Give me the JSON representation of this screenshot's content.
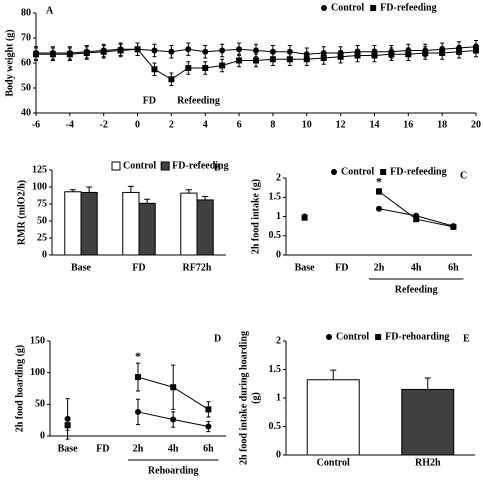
{
  "chart_data": [
    {
      "type": "line",
      "panel_label": "A",
      "ylabel": "Body weight (g)",
      "legend": "top-right",
      "x": [
        -6,
        -5,
        -4,
        -3,
        -2,
        -1,
        0,
        1,
        2,
        3,
        4,
        5,
        6,
        7,
        8,
        9,
        10,
        11,
        12,
        13,
        14,
        15,
        16,
        17,
        18,
        19,
        20
      ],
      "xlim": [
        -6,
        20
      ],
      "xticks": [
        -6,
        -4,
        -2,
        0,
        2,
        4,
        6,
        8,
        10,
        12,
        14,
        16,
        18,
        20
      ],
      "ylim": [
        40,
        80
      ],
      "yticks": [
        40,
        50,
        60,
        70,
        80
      ],
      "annotations": [
        "FD",
        "Refeeding"
      ],
      "series": [
        {
          "name": "Control",
          "marker": "circle",
          "color": "#000000",
          "values": [
            64,
            64,
            64,
            64.5,
            65,
            65.5,
            65.5,
            65,
            64.5,
            65.5,
            64.5,
            65,
            65.5,
            65,
            64.5,
            64.5,
            63.5,
            64,
            64,
            64.5,
            64.5,
            64.5,
            65,
            65,
            65.5,
            66,
            66.5
          ],
          "errors": [
            2.5,
            2.5,
            2.5,
            2.5,
            2.5,
            2.5,
            2.5,
            2.5,
            2.5,
            2.5,
            2.5,
            2.5,
            2.5,
            2.5,
            2.5,
            2.5,
            2.5,
            2.5,
            2.5,
            2.5,
            2.5,
            2.5,
            2.5,
            2.5,
            2.5,
            2.5,
            2.5
          ]
        },
        {
          "name": "FD-refeeding",
          "marker": "square",
          "color": "#000000",
          "values": [
            63.5,
            63.5,
            63.5,
            64,
            64.5,
            65,
            65.5,
            57.5,
            53.5,
            58,
            58,
            59,
            61,
            61,
            61.5,
            61.5,
            61.5,
            62,
            62.5,
            63,
            63,
            63.5,
            63.5,
            64,
            64,
            64.5,
            65
          ],
          "errors": [
            2.5,
            2.5,
            2.5,
            2.5,
            2.5,
            2.5,
            2.5,
            2.5,
            2.5,
            2.5,
            2.5,
            2.5,
            2.5,
            2.5,
            2.5,
            2.5,
            2.5,
            2.5,
            2.5,
            2.5,
            2.5,
            2.5,
            2.5,
            2.5,
            2.5,
            2.5,
            2.5
          ]
        }
      ]
    },
    {
      "type": "bar",
      "panel_label": "B",
      "ylabel": "RMR (mlO2/h)",
      "legend": "top",
      "categories": [
        "Base",
        "FD",
        "RF72h"
      ],
      "ylim": [
        0,
        125
      ],
      "yticks": [
        0,
        25,
        50,
        75,
        100,
        125
      ],
      "series": [
        {
          "name": "Control",
          "color": "#ffffff",
          "values": [
            93,
            92,
            91
          ],
          "errors": [
            3,
            9,
            5
          ]
        },
        {
          "name": "FD-refeeding",
          "color": "#404040",
          "values": [
            92,
            76,
            81
          ],
          "errors": [
            8,
            6,
            5
          ]
        }
      ]
    },
    {
      "type": "line",
      "panel_label": "C",
      "ylabel": "2h food intake (g)",
      "legend": "top",
      "categories": [
        "Base",
        "FD",
        "2h",
        "4h",
        "6h"
      ],
      "ylim": [
        0,
        2
      ],
      "yticks": [
        0,
        0.5,
        1,
        1.5,
        2
      ],
      "annotations": [
        "*",
        "Refeeding"
      ],
      "series": [
        {
          "name": "Control",
          "marker": "circle",
          "color": "#000000",
          "values": [
            1.0,
            null,
            1.2,
            1.02,
            0.75
          ],
          "errors": [
            0.04,
            null,
            0.04,
            0.04,
            0.03
          ]
        },
        {
          "name": "FD-refeeding",
          "marker": "square",
          "color": "#000000",
          "values": [
            0.97,
            null,
            1.65,
            0.93,
            0.73
          ],
          "errors": [
            0.04,
            null,
            0.07,
            0.04,
            0.03
          ]
        }
      ]
    },
    {
      "type": "line",
      "panel_label": "D",
      "ylabel": "2h food hoarding (g)",
      "legend": "top",
      "categories": [
        "Base",
        "FD",
        "2h",
        "4h",
        "6h"
      ],
      "ylim": [
        0,
        150
      ],
      "yticks": [
        0,
        50,
        100,
        150
      ],
      "annotations": [
        "*",
        "Rehoarding"
      ],
      "series": [
        {
          "name": "Control",
          "marker": "circle",
          "color": "#000000",
          "values": [
            27,
            null,
            38,
            26,
            15
          ],
          "errors": [
            32,
            null,
            20,
            12,
            8
          ]
        },
        {
          "name": "FD-rehoarding",
          "marker": "square",
          "color": "#000000",
          "values": [
            17,
            null,
            93,
            77,
            42
          ],
          "errors": [
            8,
            null,
            22,
            35,
            12
          ]
        }
      ]
    },
    {
      "type": "bar",
      "panel_label": "E",
      "ylabel": [
        "2h food intake during hoarding",
        "(g)"
      ],
      "categories": [
        "Control",
        "RH2h"
      ],
      "ylim": [
        0,
        2
      ],
      "yticks": [
        0,
        0.5,
        1,
        1.5,
        2
      ],
      "values": [
        1.32,
        1.15
      ],
      "errors": [
        0.17,
        0.2
      ],
      "colors": [
        "#ffffff",
        "#404040"
      ]
    }
  ]
}
